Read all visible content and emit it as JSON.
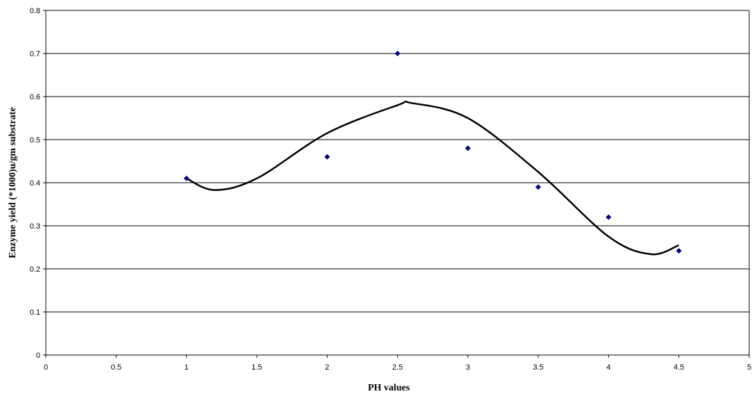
{
  "chart_data": {
    "type": "scatter",
    "xlabel": "PH values",
    "ylabel": "Enzyme yield (*1000)u/gm substrate",
    "xlim": [
      0,
      5
    ],
    "ylim": [
      0,
      0.8
    ],
    "x_ticks": [
      "0",
      "0.5",
      "1",
      "1.5",
      "2",
      "2.5",
      "3",
      "3.5",
      "4",
      "4.5",
      "5"
    ],
    "y_ticks": [
      "0",
      "0.1",
      "0.2",
      "0.3",
      "0.4",
      "0.5",
      "0.6",
      "0.7",
      "0.8"
    ],
    "grid": "horizontal",
    "series": [
      {
        "x": [
          1,
          2,
          2.5,
          3,
          3.5,
          4,
          4.5
        ],
        "y": [
          0.41,
          0.46,
          0.7,
          0.48,
          0.39,
          0.32,
          0.242
        ],
        "marker": "diamond",
        "color": "#000080"
      }
    ],
    "trendline": {
      "type": "polynomial",
      "color": "#000000",
      "x": [
        1,
        1.2,
        1.5,
        2,
        2.5,
        2.6,
        3,
        3.5,
        4,
        4.3,
        4.5
      ],
      "y": [
        0.41,
        0.383,
        0.41,
        0.515,
        0.58,
        0.585,
        0.55,
        0.425,
        0.275,
        0.234,
        0.255
      ]
    }
  }
}
